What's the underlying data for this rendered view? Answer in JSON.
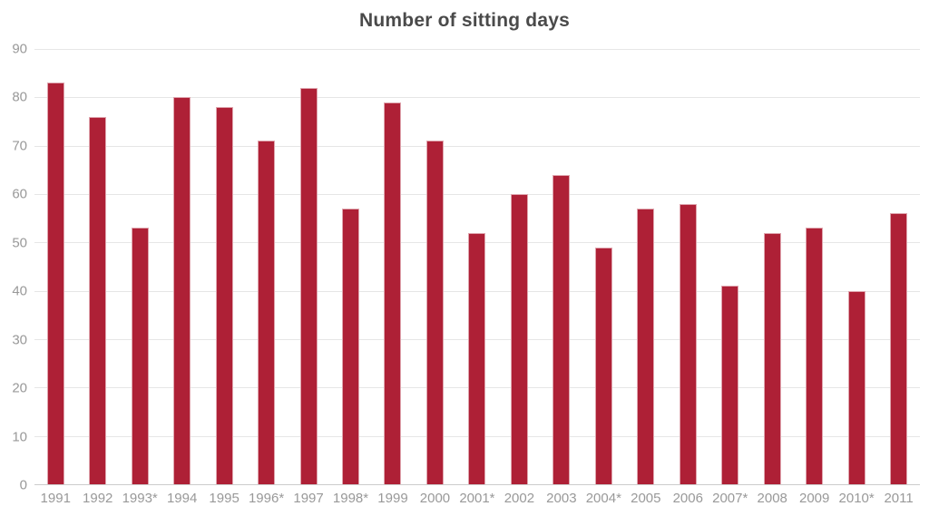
{
  "chart_data": {
    "type": "bar",
    "title": "Number of sitting days",
    "categories": [
      "1991",
      "1992",
      "1993*",
      "1994",
      "1995",
      "1996*",
      "1997",
      "1998*",
      "1999",
      "2000",
      "2001*",
      "2002",
      "2003",
      "2004*",
      "2005",
      "2006",
      "2007*",
      "2008",
      "2009",
      "2010*",
      "2011"
    ],
    "values": [
      83,
      76,
      53,
      80,
      78,
      71,
      82,
      57,
      79,
      71,
      52,
      60,
      64,
      49,
      57,
      58,
      41,
      52,
      53,
      40,
      56
    ],
    "xlabel": "",
    "ylabel": "",
    "ylim": [
      0,
      90
    ],
    "yticks": [
      0,
      10,
      20,
      30,
      40,
      50,
      60,
      70,
      80,
      90
    ],
    "grid": "horizontal",
    "legend": "none",
    "colors": {
      "bar": "#ae2036",
      "bar_border": "rgba(255,255,255,0.6)",
      "gridline": "#e6e6e6",
      "axis_line": "#cccccc",
      "tick_label": "#999999",
      "title": "#4a4a4a",
      "background": "#ffffff"
    }
  }
}
